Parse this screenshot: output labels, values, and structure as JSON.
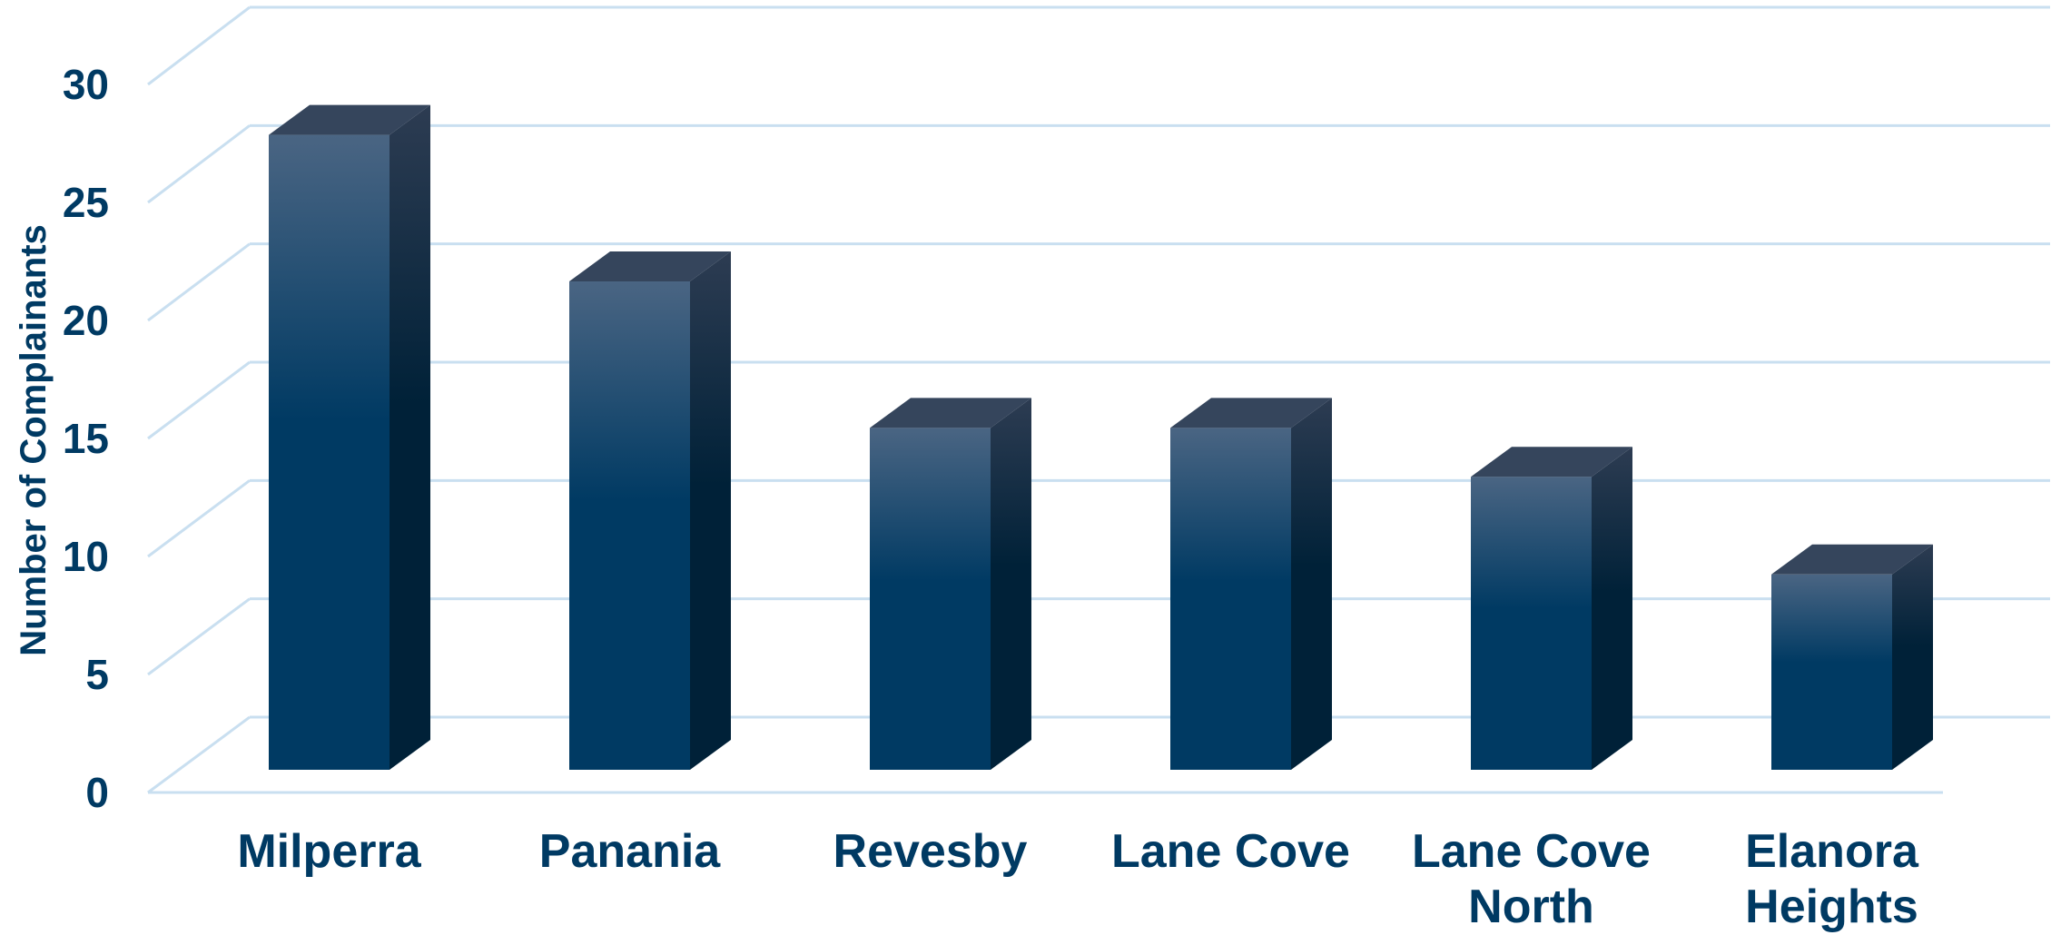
{
  "chart_data": {
    "type": "bar",
    "style": "3d-column",
    "title": "",
    "xlabel": "",
    "ylabel": "Number of Complainants",
    "categories": [
      [
        "Milperra"
      ],
      [
        "Panania"
      ],
      [
        "Revesby"
      ],
      [
        "Lane Cove"
      ],
      [
        "Lane Cove",
        "North"
      ],
      [
        "Elanora",
        "Heights"
      ]
    ],
    "values": [
      26,
      20,
      14,
      14,
      12,
      8
    ],
    "ylim": [
      0,
      30
    ],
    "yticks": [
      0,
      5,
      10,
      15,
      20,
      25,
      30
    ],
    "grid": true,
    "legend": "none",
    "colors": {
      "bar_top_light": "#4a6583",
      "bar_mid": "#003a63",
      "bar_bottom": "#003a63",
      "bar_side_dark": "#002138",
      "bar_side_light": "#2d3c52",
      "bar_cap": "#35455c",
      "gridline": "#c9dff0",
      "text": "#003a63"
    }
  }
}
